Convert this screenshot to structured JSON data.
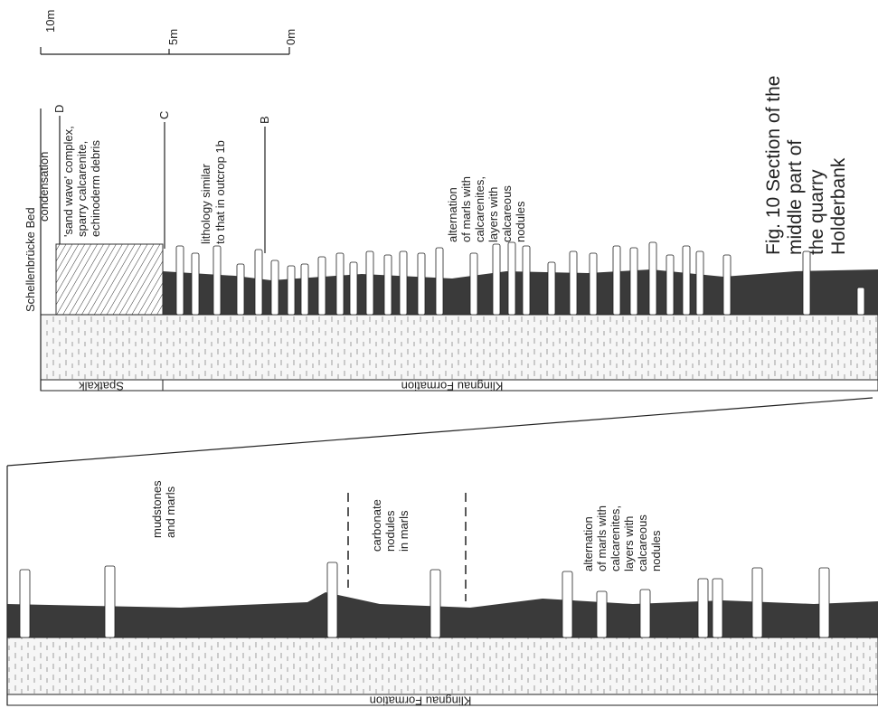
{
  "scale": {
    "labels": [
      "10m",
      "5m",
      "0m"
    ]
  },
  "upper": {
    "markers": [
      "D",
      "C",
      "B"
    ],
    "bed_name": "Schellenbrücke Bed",
    "condensation": "condensation",
    "sand_wave": [
      "'sand wave' complex,",
      "sparry calcarenite,",
      "echinoderm debris"
    ],
    "lithology": [
      "lithology  similar",
      "to that in outcrop 1b"
    ],
    "alternation": [
      "alternation",
      "of marls with",
      "calcarenites,",
      "layers with",
      "calcareous",
      "nodules"
    ],
    "unit": "Spatkalk",
    "formation": "Klingnau Formation"
  },
  "caption": [
    "Fig. 10  Section of the",
    "middle part of",
    "the quarry",
    "Holderbank"
  ],
  "lower": {
    "mudstones": [
      "mudstones",
      "and marls"
    ],
    "nodules": [
      "carbonate",
      "nodules",
      "in marls"
    ],
    "alternation": [
      "alternation",
      "of marls with",
      "calcarenites,",
      "layers with",
      "calcareous",
      "nodules"
    ],
    "formation": "Klingnau Formation"
  }
}
